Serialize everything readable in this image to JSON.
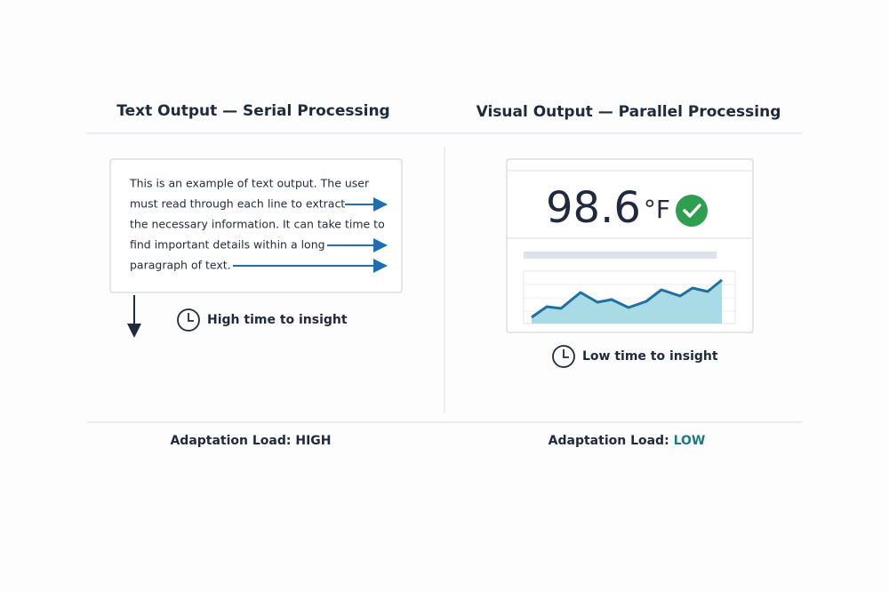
{
  "left": {
    "title": "Text Output — Serial Processing",
    "paragraph_lines": [
      "This is an example of text output. The user",
      "must read through each line to extract",
      "the necessary information. It can take time to",
      "find important details within a long",
      "paragraph of text."
    ],
    "caption": "High time to insight",
    "load_label": "Adaptation Load:",
    "load_value": "HIGH"
  },
  "right": {
    "title": "Visual Output — Parallel Processing",
    "reading": "98.6",
    "unit": "°F",
    "caption": "Low time to insight",
    "load_label": "Adaptation Load:",
    "load_value": "LOW"
  }
}
